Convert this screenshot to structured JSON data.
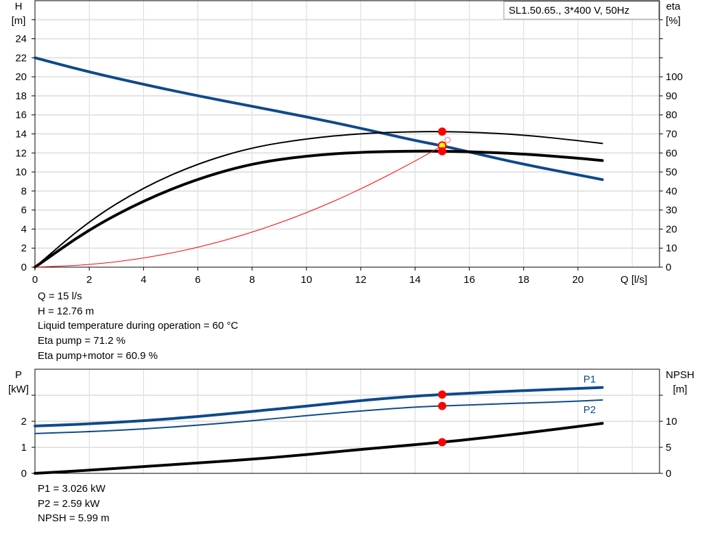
{
  "chart_data": [
    {
      "type": "line",
      "title": "SL1.50.65., 3*400 V, 50Hz",
      "xlabel": "Q [l/s]",
      "xlim": [
        0,
        23
      ],
      "xticks": [
        0,
        2,
        4,
        6,
        8,
        10,
        12,
        14,
        16,
        18,
        20
      ],
      "ylabel_left": [
        "H",
        "[m]"
      ],
      "ylim_left": [
        0,
        28
      ],
      "yticks_left": [
        0,
        2,
        4,
        6,
        8,
        10,
        12,
        14,
        16,
        18,
        20,
        22,
        24
      ],
      "ylabel_right": [
        "eta",
        "[%]"
      ],
      "ylim_right": [
        0,
        140
      ],
      "yticks_right": [
        0,
        10,
        20,
        30,
        40,
        50,
        60,
        70,
        80,
        90,
        100
      ],
      "grid": true,
      "legend": "top-right",
      "x": [
        0,
        2,
        4,
        6,
        8,
        10,
        12,
        14,
        15,
        16,
        18,
        20,
        20.9
      ],
      "series": [
        {
          "axis": "left",
          "color": "#0d4a8a",
          "values": [
            22,
            20.5,
            19.2,
            18.0,
            16.9,
            15.8,
            14.6,
            13.3,
            12.76,
            12.1,
            10.8,
            9.7,
            9.2
          ]
        },
        {
          "axis": "right",
          "color": "#000000",
          "values": [
            0,
            24.5,
            42,
            54.5,
            63,
            67.5,
            70.3,
            71.2,
            71.2,
            71,
            69.5,
            66.5,
            65
          ]
        },
        {
          "axis": "right",
          "color": "#000000",
          "values": [
            0,
            20,
            35,
            46.5,
            54.5,
            58.5,
            60.5,
            61,
            60.9,
            60.7,
            59.5,
            57.3,
            56
          ]
        },
        {
          "axis": "left",
          "color": "#ff0000",
          "x": [
            0,
            2,
            4,
            6,
            8,
            10,
            12,
            14,
            15
          ],
          "values": [
            0,
            0.23,
            0.91,
            2.04,
            3.63,
            5.67,
            8.17,
            11.12,
            12.76
          ]
        }
      ],
      "duty_points": [
        {
          "x": 15,
          "y": 71.2,
          "axis": "right"
        },
        {
          "x": 15,
          "y": 12.76,
          "axis": "left"
        },
        {
          "x": 15,
          "y": 60.9,
          "axis": "right"
        }
      ]
    },
    {
      "type": "line",
      "xlim": [
        0,
        23
      ],
      "ylabel_left": [
        "P",
        "[kW]"
      ],
      "ylim_left": [
        0,
        4
      ],
      "yticks_left": [
        0,
        1,
        2
      ],
      "ylabel_right": [
        "NPSH",
        "[m]"
      ],
      "ylim_right": [
        0,
        20
      ],
      "yticks_right": [
        0,
        5,
        10
      ],
      "grid": true,
      "x": [
        0,
        2,
        4,
        6,
        8,
        10,
        12,
        14,
        15,
        16,
        18,
        20,
        20.9
      ],
      "series": [
        {
          "name": "P1",
          "axis": "left",
          "color": "#0d4a8a",
          "values": [
            1.82,
            1.9,
            2.02,
            2.18,
            2.38,
            2.58,
            2.8,
            2.97,
            3.026,
            3.08,
            3.18,
            3.26,
            3.3
          ]
        },
        {
          "name": "P2",
          "axis": "left",
          "color": "#0d4a8a",
          "values": [
            1.53,
            1.6,
            1.7,
            1.85,
            2.02,
            2.22,
            2.4,
            2.55,
            2.59,
            2.63,
            2.7,
            2.77,
            2.82
          ]
        },
        {
          "axis": "right",
          "color": "#000000",
          "values": [
            0,
            0.6,
            1.3,
            2.0,
            2.7,
            3.6,
            4.6,
            5.5,
            5.99,
            6.5,
            7.7,
            9.0,
            9.6
          ]
        }
      ],
      "duty_points": [
        {
          "x": 15,
          "y": 3.026,
          "axis": "left"
        },
        {
          "x": 15,
          "y": 2.59,
          "axis": "left"
        },
        {
          "x": 15,
          "y": 5.99,
          "axis": "right"
        }
      ]
    }
  ],
  "info_top": [
    "Q = 15 l/s",
    "H = 12.76 m",
    "Liquid temperature during operation = 60 °C",
    "Eta pump = 71.2 %",
    "Eta pump+motor = 60.9 %"
  ],
  "info_bottom": [
    "P1 = 3.026 kW",
    "P2 = 2.59 kW",
    "NPSH = 5.99 m"
  ]
}
